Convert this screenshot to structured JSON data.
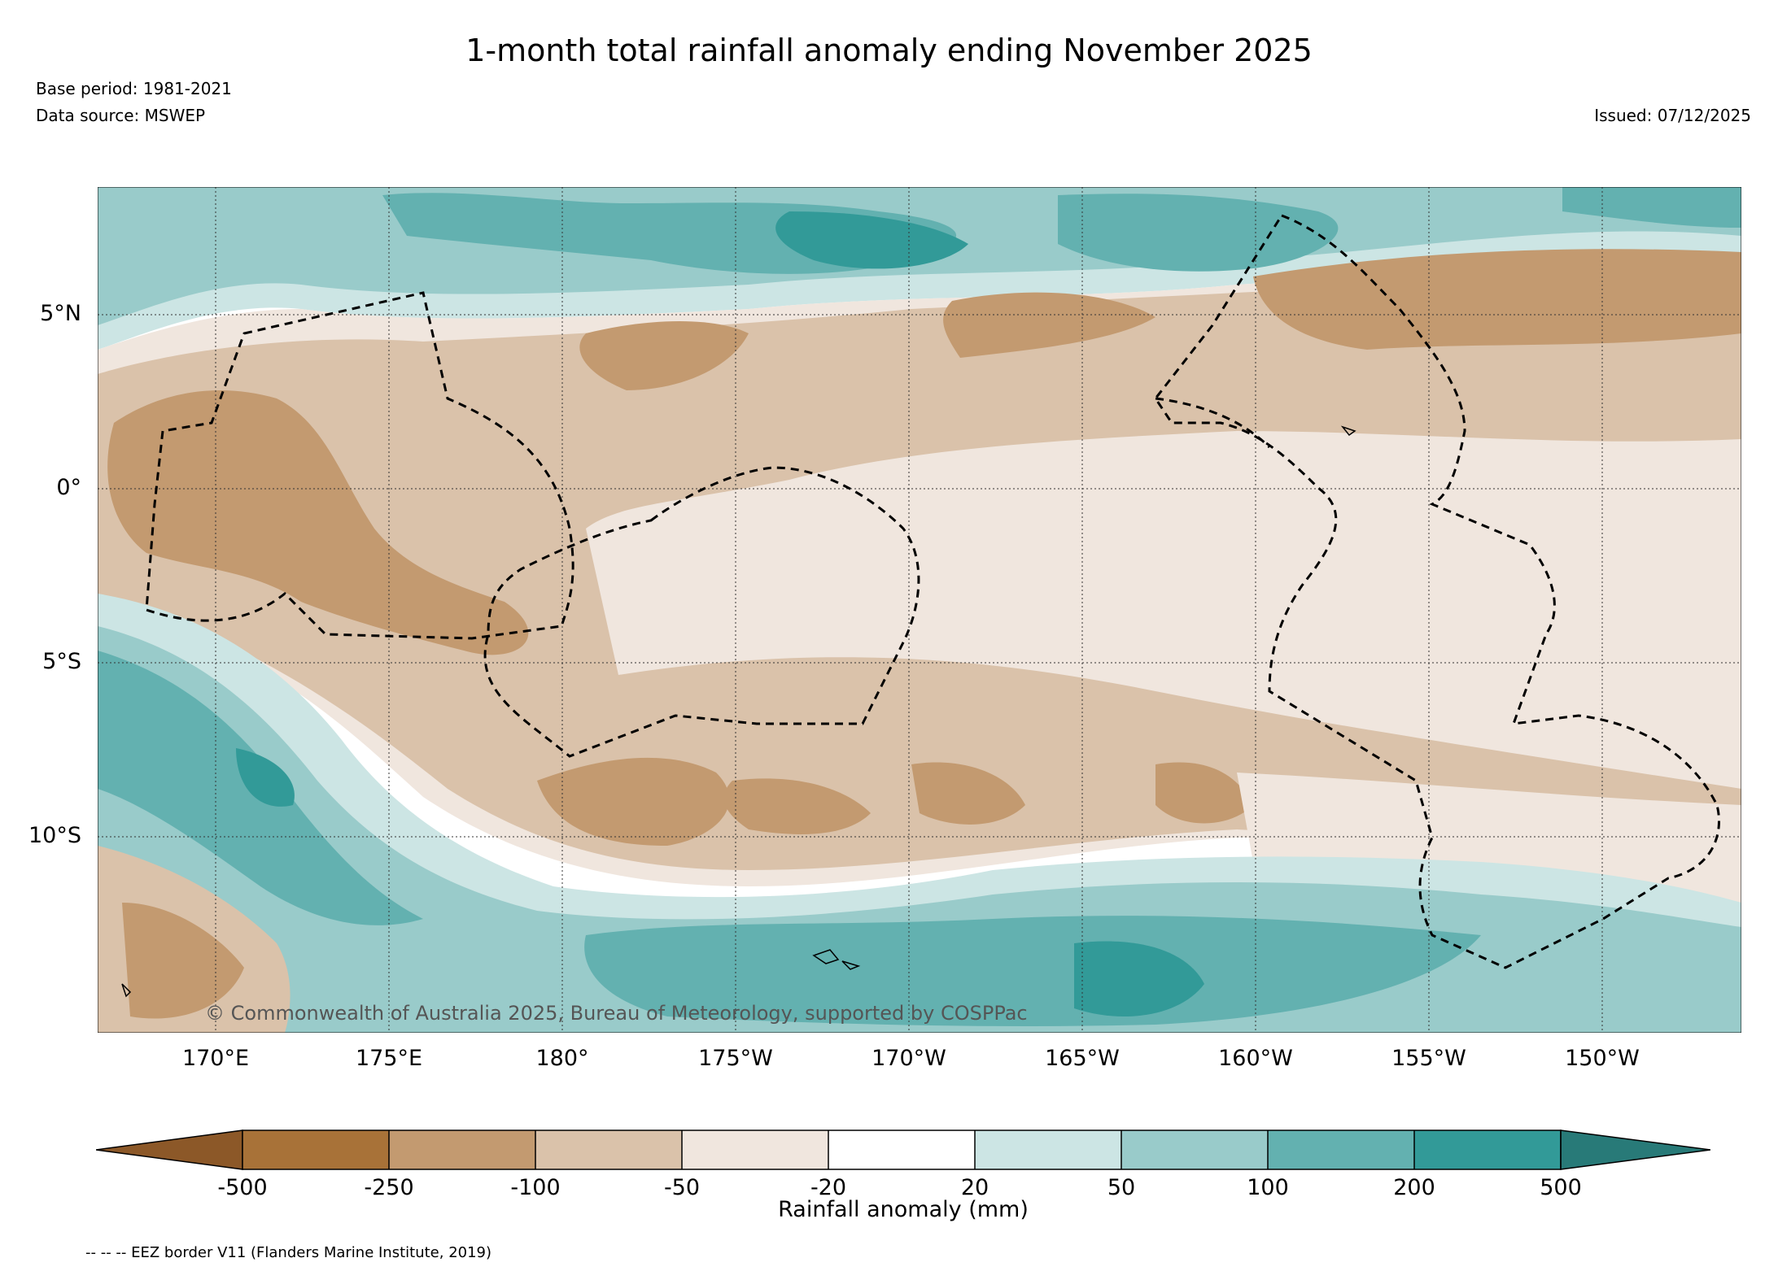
{
  "header": {
    "title": "1-month total rainfall anomaly ending November 2025",
    "base_period": "Base period: 1981-2021",
    "data_source": "Data source: MSWEP",
    "issued": "Issued: 07/12/2025"
  },
  "map": {
    "lat_labels": [
      "5°N",
      "0°",
      "5°S",
      "10°S"
    ],
    "lon_labels": [
      "170°E",
      "175°E",
      "180°",
      "175°W",
      "170°W",
      "165°W",
      "160°W",
      "155°W",
      "150°W"
    ],
    "copyright": "© Commonwealth of Australia 2025, Bureau of Meteorology, supported by COSPPac",
    "extent": {
      "lon_min": 166.6,
      "lon_max": 213.9,
      "lat_min": -15.8,
      "lat_max": 8.5
    }
  },
  "colorbar": {
    "ticks": [
      "-500",
      "-250",
      "-100",
      "-50",
      "-20",
      "20",
      "50",
      "100",
      "200",
      "500"
    ],
    "label": "Rainfall anomaly (mm)",
    "colors": [
      "#8c5828",
      "#a87238",
      "#c39a70",
      "#dac2aa",
      "#f0e6de",
      "#ffffff",
      "#cce5e4",
      "#99cbca",
      "#63b1b0",
      "#329a98",
      "#287a78"
    ]
  },
  "footer": {
    "eez_note": "-- -- -- EEZ border V11 (Flanders Marine Institute, 2019)"
  }
}
